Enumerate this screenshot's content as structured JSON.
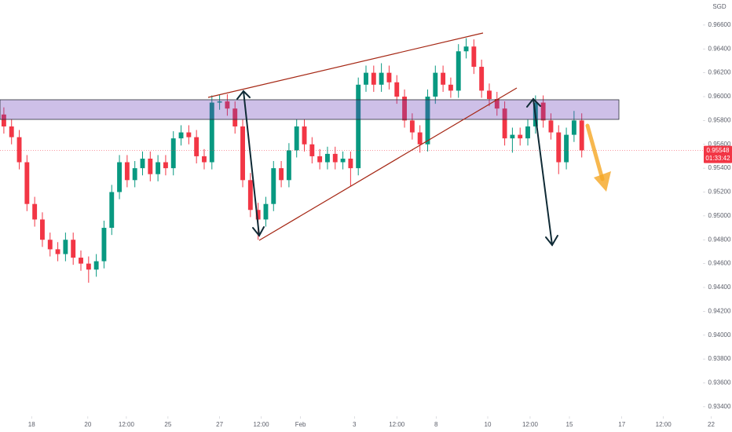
{
  "chart_data": {
    "type": "candlestick",
    "currency": "SGD",
    "current_price": 0.95548,
    "countdown": "01:33:42",
    "up_color": "#089981",
    "down_color": "#f23645",
    "ylim": [
      0.9332,
      0.9681
    ],
    "yticks": [
      {
        "value": 0.966,
        "label": "0.96600"
      },
      {
        "value": 0.964,
        "label": "0.96400"
      },
      {
        "value": 0.962,
        "label": "0.96200"
      },
      {
        "value": 0.96,
        "label": "0.96000"
      },
      {
        "value": 0.958,
        "label": "0.95800"
      },
      {
        "value": 0.956,
        "label": "0.95600"
      },
      {
        "value": 0.954,
        "label": "0.95400"
      },
      {
        "value": 0.952,
        "label": "0.95200"
      },
      {
        "value": 0.95,
        "label": "0.95000"
      },
      {
        "value": 0.948,
        "label": "0.94800"
      },
      {
        "value": 0.946,
        "label": "0.94600"
      },
      {
        "value": 0.944,
        "label": "0.94400"
      },
      {
        "value": 0.942,
        "label": "0.94200"
      },
      {
        "value": 0.94,
        "label": "0.94000"
      },
      {
        "value": 0.938,
        "label": "0.93800"
      },
      {
        "value": 0.936,
        "label": "0.93600"
      },
      {
        "value": 0.934,
        "label": "0.93400"
      }
    ],
    "xlim": [
      0,
      95
    ],
    "xticks": [
      {
        "value": 4.1,
        "label": "18"
      },
      {
        "value": 11.4,
        "label": "20"
      },
      {
        "value": 16.4,
        "label": "12:00"
      },
      {
        "value": 21.8,
        "label": "25"
      },
      {
        "value": 28.5,
        "label": "27"
      },
      {
        "value": 33.9,
        "label": "12:00"
      },
      {
        "value": 39,
        "label": "Feb"
      },
      {
        "value": 46,
        "label": "3"
      },
      {
        "value": 51.5,
        "label": "12:00"
      },
      {
        "value": 56.6,
        "label": "8"
      },
      {
        "value": 63.3,
        "label": "10"
      },
      {
        "value": 68.8,
        "label": "12:00"
      },
      {
        "value": 73.9,
        "label": "15"
      },
      {
        "value": 80.7,
        "label": "17"
      },
      {
        "value": 86.1,
        "label": "12:00"
      },
      {
        "value": 92.3,
        "label": "22"
      }
    ],
    "open": [
      0.9585,
      0.9575,
      0.9566,
      0.9545,
      0.951,
      0.9497,
      0.948,
      0.9472,
      0.9468,
      0.948,
      0.9465,
      0.946,
      0.9455,
      0.9462,
      0.949,
      0.952,
      0.9545,
      0.953,
      0.954,
      0.9548,
      0.9535,
      0.9545,
      0.954,
      0.9565,
      0.957,
      0.9566,
      0.955,
      0.9545,
      0.9595,
      0.9596,
      0.959,
      0.9575,
      0.953,
      0.9505,
      0.9497,
      0.951,
      0.954,
      0.953,
      0.9555,
      0.9575,
      0.956,
      0.955,
      0.9545,
      0.9552,
      0.9545,
      0.9548,
      0.954,
      0.961,
      0.962,
      0.961,
      0.962,
      0.9612,
      0.96,
      0.958,
      0.957,
      0.956,
      0.96,
      0.962,
      0.961,
      0.9605,
      0.9638,
      0.9642,
      0.9625,
      0.9605,
      0.9598,
      0.959,
      0.9565,
      0.9568,
      0.9565,
      0.9575,
      0.9595,
      0.958,
      0.957,
      0.9545,
      0.9568,
      0.958
    ],
    "high": [
      0.9591,
      0.9581,
      0.9572,
      0.9551,
      0.9516,
      0.9503,
      0.9486,
      0.9478,
      0.9486,
      0.9486,
      0.9471,
      0.9466,
      0.9468,
      0.9496,
      0.9526,
      0.9551,
      0.9551,
      0.9546,
      0.9554,
      0.9554,
      0.9551,
      0.9551,
      0.9571,
      0.9576,
      0.9576,
      0.9572,
      0.9556,
      0.9601,
      0.9602,
      0.9602,
      0.9596,
      0.9581,
      0.9536,
      0.9511,
      0.9516,
      0.9546,
      0.9546,
      0.9561,
      0.9581,
      0.9581,
      0.9566,
      0.9556,
      0.9558,
      0.9558,
      0.9554,
      0.9554,
      0.9616,
      0.9626,
      0.9626,
      0.9628,
      0.9626,
      0.9618,
      0.9606,
      0.9586,
      0.9576,
      0.9606,
      0.9626,
      0.9626,
      0.9616,
      0.9644,
      0.9649,
      0.9648,
      0.9631,
      0.9611,
      0.9604,
      0.9596,
      0.9574,
      0.9574,
      0.9581,
      0.9601,
      0.9601,
      0.9586,
      0.9576,
      0.9574,
      0.9588,
      0.9586
    ],
    "low": [
      0.9569,
      0.956,
      0.9539,
      0.9504,
      0.9491,
      0.9474,
      0.9466,
      0.9462,
      0.9462,
      0.9459,
      0.9454,
      0.9444,
      0.9449,
      0.9456,
      0.9484,
      0.9514,
      0.9524,
      0.9524,
      0.9534,
      0.9529,
      0.9529,
      0.9534,
      0.9534,
      0.9559,
      0.956,
      0.9544,
      0.9539,
      0.9539,
      0.9589,
      0.9584,
      0.9569,
      0.9524,
      0.9499,
      0.948,
      0.9491,
      0.9504,
      0.9524,
      0.9524,
      0.9549,
      0.9554,
      0.9544,
      0.9539,
      0.9539,
      0.9539,
      0.9539,
      0.9525,
      0.9534,
      0.9604,
      0.9604,
      0.9604,
      0.9606,
      0.9594,
      0.9574,
      0.9564,
      0.9553,
      0.9554,
      0.9594,
      0.9604,
      0.9599,
      0.9599,
      0.9632,
      0.9619,
      0.9599,
      0.9592,
      0.9584,
      0.9559,
      0.9553,
      0.9559,
      0.9559,
      0.9569,
      0.9574,
      0.9564,
      0.9535,
      0.9539,
      0.9562,
      0.9549
    ],
    "close": [
      0.9575,
      0.9566,
      0.9545,
      0.951,
      0.9497,
      0.948,
      0.9472,
      0.9468,
      0.948,
      0.9465,
      0.946,
      0.9455,
      0.9462,
      0.949,
      0.952,
      0.9545,
      0.953,
      0.954,
      0.9548,
      0.9535,
      0.9545,
      0.954,
      0.9565,
      0.957,
      0.9566,
      0.955,
      0.9545,
      0.9595,
      0.9596,
      0.959,
      0.9575,
      0.953,
      0.9505,
      0.9497,
      0.951,
      0.954,
      0.953,
      0.9555,
      0.9575,
      0.956,
      0.955,
      0.9545,
      0.9552,
      0.9545,
      0.9548,
      0.954,
      0.961,
      0.962,
      0.961,
      0.962,
      0.9612,
      0.96,
      0.958,
      0.957,
      0.956,
      0.96,
      0.962,
      0.961,
      0.9605,
      0.9638,
      0.9642,
      0.9625,
      0.9605,
      0.9598,
      0.959,
      0.9565,
      0.9568,
      0.9565,
      0.9575,
      0.9595,
      0.958,
      0.957,
      0.9545,
      0.9568,
      0.958,
      0.9555
    ]
  }
}
